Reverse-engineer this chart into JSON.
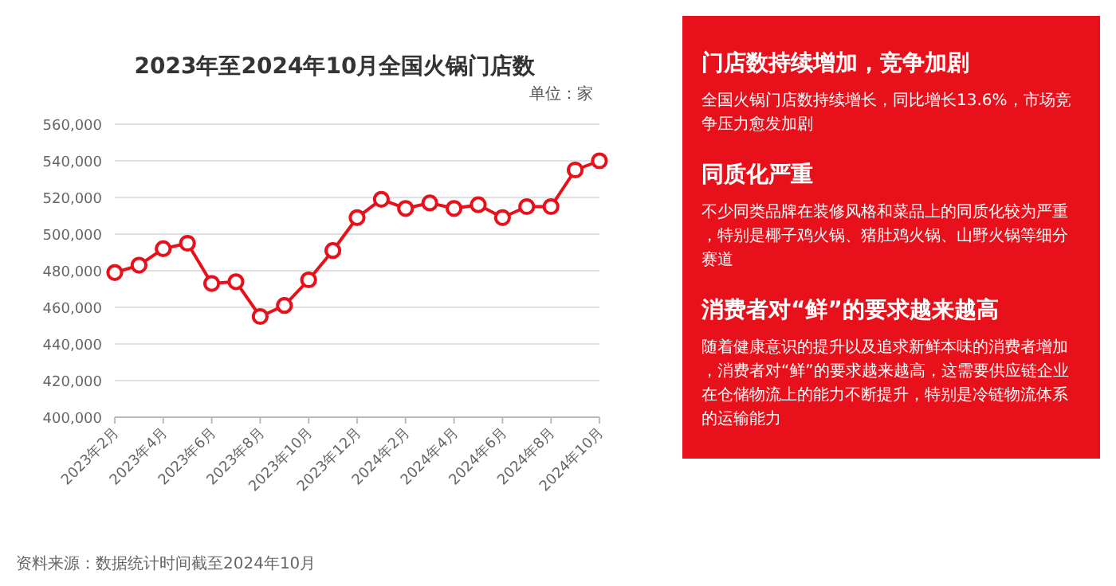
{
  "chart_data": [
    {
      "type": "line",
      "title": "2023年至2024年10月全国火锅门店数",
      "subtitle": "单位：家",
      "categories": [
        "2023年2月",
        null,
        "2023年4月",
        null,
        "2023年6月",
        null,
        "2023年8月",
        null,
        "2023年10月",
        null,
        "2023年12月",
        null,
        "2024年2月",
        null,
        "2024年4月",
        null,
        "2024年6月",
        null,
        "2024年8月",
        null,
        "2024年10月"
      ],
      "series": [
        {
          "color": "#e8101a",
          "values": [
            479000,
            483000,
            492000,
            495000,
            473000,
            474000,
            455000,
            461000,
            475000,
            491000,
            509000,
            519000,
            514000,
            517000,
            514000,
            516000,
            509000,
            515000,
            515000,
            535000,
            540000
          ]
        }
      ],
      "ylim": [
        400000,
        560000
      ],
      "yticks": [
        {
          "value": 400000,
          "label": "400,000"
        },
        {
          "value": 420000,
          "label": "420,000"
        },
        {
          "value": 440000,
          "label": "440,000"
        },
        {
          "value": 460000,
          "label": "460,000"
        },
        {
          "value": 480000,
          "label": "480,000"
        },
        {
          "value": 500000,
          "label": "500,000"
        },
        {
          "value": 520000,
          "label": "520,000"
        },
        {
          "value": 540000,
          "label": "540,000"
        },
        {
          "value": 560000,
          "label": "560,000"
        }
      ],
      "grid": "y",
      "marker": "circle",
      "line_style": "solid",
      "annotations": [
        "资料来源：数据统计时间截至2024年10月"
      ]
    },
    {
      "type": "other",
      "annotations": [
        "门店数持续增加，竞争加剧",
        "全国火锅门店数持续增长，同比增长13.6%，市场竞争压力愈发加剧",
        "同质化严重",
        "不少同类品牌在装修风格和菜品上的同质化较为严重，特别是椰子鸡火锅、猪肚鸡火锅、山野火锅等细分赛道",
        "消费者对“鲜”的要求越来越高",
        "随着健康意识的提升以及追求新鲜本味的消费者增加，消费者对“鲜”的要求越来越高，这需要供应链企业在仓储物流上的能力不断提升，特别是冷链物流体系的运输能力"
      ]
    }
  ]
}
